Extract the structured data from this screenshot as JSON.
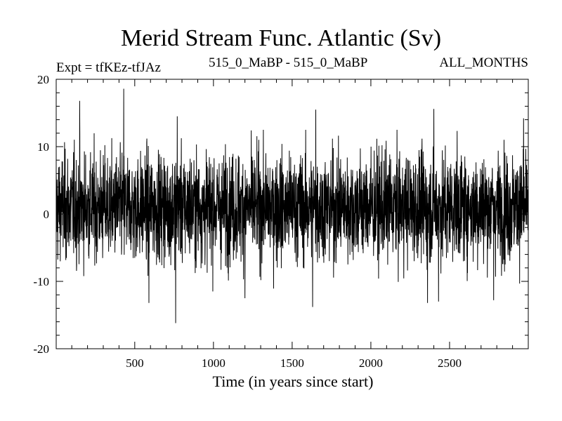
{
  "header": {
    "title": "Merid Stream Func. Atlantic (Sv)",
    "experiment": "Expt = tfKEz-tfJAz",
    "run": "515_0_MaBP - 515_0_MaBP",
    "months": "ALL_MONTHS"
  },
  "chart_data": {
    "type": "line",
    "title": "Merid Stream Func. Atlantic (Sv)",
    "xlabel": "Time (in years since start)",
    "ylabel": "",
    "xlim": [
      1,
      3000
    ],
    "ylim": [
      -20,
      20
    ],
    "xticks": [
      500,
      1000,
      1500,
      2000,
      2500
    ],
    "yticks": [
      -20,
      -10,
      0,
      10,
      20
    ],
    "grid": false,
    "series": [
      {
        "color": "#000000",
        "mean": 1,
        "spread": 4,
        "n_points": 3000,
        "peaks": [
          {
            "x": 150,
            "y": 16.8
          },
          {
            "x": 430,
            "y": 18.6
          },
          {
            "x": 770,
            "y": 14.5
          },
          {
            "x": 1200,
            "y": 15.0
          },
          {
            "x": 1650,
            "y": 15.5
          },
          {
            "x": 2400,
            "y": 15.6
          },
          {
            "x": 2970,
            "y": 14.2
          }
        ],
        "troughs": [
          {
            "x": 760,
            "y": -16.2
          },
          {
            "x": 590,
            "y": -13.2
          },
          {
            "x": 1630,
            "y": -13.8
          },
          {
            "x": 2360,
            "y": -13.2
          },
          {
            "x": 2430,
            "y": -13.0
          },
          {
            "x": 2780,
            "y": -12.8
          },
          {
            "x": 1200,
            "y": -12.5
          }
        ]
      }
    ]
  }
}
